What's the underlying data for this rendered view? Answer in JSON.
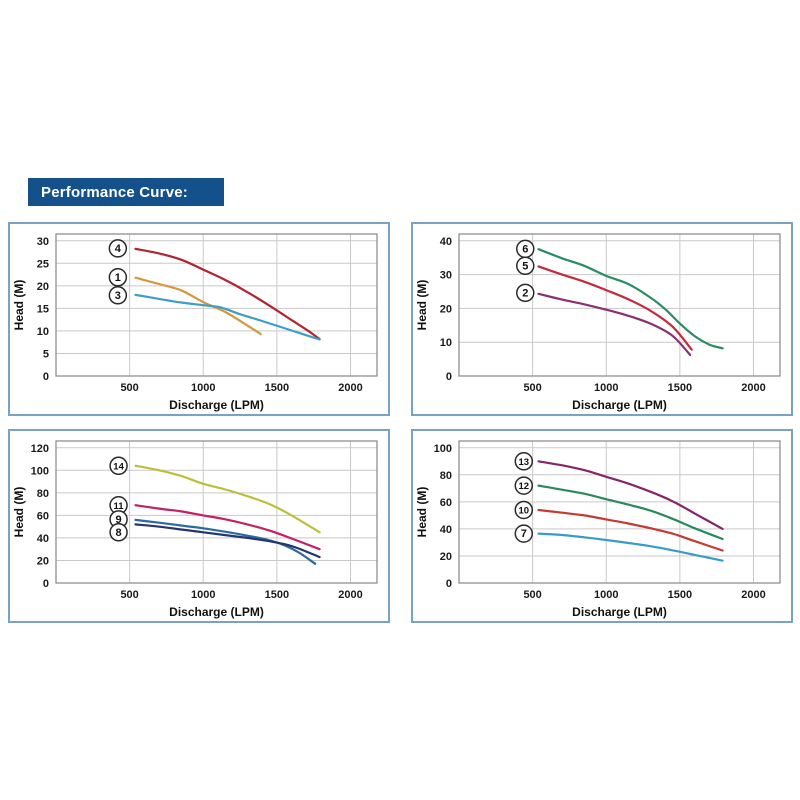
{
  "page": {
    "background": "#ffffff"
  },
  "header": {
    "title": "Performance Curve:",
    "bg": "#14518a",
    "fg": "#ffffff"
  },
  "panels": {
    "border_color": "#7aa2c2",
    "background": "#ffffff"
  },
  "chart_style": {
    "frame_color": "#909090",
    "grid_color": "#c9c9c9",
    "curve_width": 2.2,
    "circle_fill": "#ffffff",
    "circle_stroke": "#2a2a2a",
    "tick_color": "#1b1b1b"
  },
  "chart_data": [
    {
      "id": "top-left",
      "type": "line",
      "title": "",
      "xlabel": "Discharge (LPM)",
      "ylabel": "Head (M)",
      "xlim": [
        0,
        2180
      ],
      "ylim": [
        0,
        31.5
      ],
      "xticks": [
        500,
        1000,
        1500,
        2000
      ],
      "yticks": [
        0,
        5,
        10,
        15,
        20,
        25,
        30
      ],
      "grid": true,
      "series": [
        {
          "name": "4",
          "color": "#b22333",
          "label_at": [
            420,
            28.3
          ],
          "points": [
            [
              540,
              28.2
            ],
            [
              700,
              27.2
            ],
            [
              850,
              25.8
            ],
            [
              1000,
              23.6
            ],
            [
              1150,
              21.3
            ],
            [
              1300,
              18.6
            ],
            [
              1450,
              15.6
            ],
            [
              1600,
              12.4
            ],
            [
              1700,
              10.3
            ],
            [
              1790,
              8.2
            ]
          ]
        },
        {
          "name": "1",
          "color": "#d6973d",
          "label_at": [
            420,
            21.9
          ],
          "points": [
            [
              540,
              21.8
            ],
            [
              700,
              20.4
            ],
            [
              850,
              19.0
            ],
            [
              1000,
              16.4
            ],
            [
              1150,
              14.2
            ],
            [
              1280,
              11.6
            ],
            [
              1390,
              9.3
            ]
          ]
        },
        {
          "name": "3",
          "color": "#3d9ec6",
          "label_at": [
            420,
            17.9
          ],
          "points": [
            [
              540,
              18.0
            ],
            [
              700,
              17.1
            ],
            [
              850,
              16.3
            ],
            [
              1000,
              15.7
            ],
            [
              1120,
              15.2
            ],
            [
              1250,
              13.7
            ],
            [
              1400,
              12.2
            ],
            [
              1600,
              10.1
            ],
            [
              1790,
              8.1
            ]
          ]
        }
      ]
    },
    {
      "id": "top-right",
      "type": "line",
      "title": "",
      "xlabel": "Discharge (LPM)",
      "ylabel": "Head (M)",
      "xlim": [
        0,
        2180
      ],
      "ylim": [
        0,
        42
      ],
      "xticks": [
        500,
        1000,
        1500,
        2000
      ],
      "yticks": [
        0,
        10,
        20,
        30,
        40
      ],
      "grid": true,
      "series": [
        {
          "name": "6",
          "color": "#2a8c64",
          "label_at": [
            450,
            37.6
          ],
          "points": [
            [
              540,
              37.5
            ],
            [
              700,
              34.8
            ],
            [
              850,
              32.6
            ],
            [
              1000,
              29.6
            ],
            [
              1150,
              27.2
            ],
            [
              1300,
              23.2
            ],
            [
              1400,
              19.8
            ],
            [
              1500,
              15.5
            ],
            [
              1600,
              11.8
            ],
            [
              1700,
              9.3
            ],
            [
              1790,
              8.2
            ]
          ]
        },
        {
          "name": "5",
          "color": "#c22b3a",
          "label_at": [
            450,
            32.6
          ],
          "points": [
            [
              540,
              32.4
            ],
            [
              700,
              30.0
            ],
            [
              850,
              27.9
            ],
            [
              1000,
              25.4
            ],
            [
              1150,
              22.7
            ],
            [
              1300,
              19.3
            ],
            [
              1450,
              14.6
            ],
            [
              1580,
              7.8
            ]
          ]
        },
        {
          "name": "2",
          "color": "#8b2f72",
          "label_at": [
            450,
            24.6
          ],
          "points": [
            [
              540,
              24.3
            ],
            [
              700,
              22.6
            ],
            [
              850,
              21.2
            ],
            [
              1000,
              19.6
            ],
            [
              1150,
              17.8
            ],
            [
              1300,
              15.5
            ],
            [
              1450,
              11.9
            ],
            [
              1570,
              6.2
            ]
          ]
        }
      ]
    },
    {
      "id": "bottom-left",
      "type": "line",
      "title": "",
      "xlabel": "Discharge (LPM)",
      "ylabel": "Head (M)",
      "xlim": [
        0,
        2180
      ],
      "ylim": [
        0,
        126
      ],
      "xticks": [
        500,
        1000,
        1500,
        2000
      ],
      "yticks": [
        0,
        20,
        40,
        60,
        80,
        100,
        120
      ],
      "grid": true,
      "series": [
        {
          "name": "14",
          "color": "#bcbf3a",
          "label_at": [
            425,
            104
          ],
          "points": [
            [
              540,
              104
            ],
            [
              700,
              100
            ],
            [
              850,
              95
            ],
            [
              1000,
              88
            ],
            [
              1150,
              83
            ],
            [
              1300,
              77
            ],
            [
              1450,
              70
            ],
            [
              1600,
              60
            ],
            [
              1790,
              45
            ]
          ]
        },
        {
          "name": "11",
          "color": "#c42063",
          "label_at": [
            425,
            69
          ],
          "points": [
            [
              540,
              69
            ],
            [
              700,
              66
            ],
            [
              850,
              63.5
            ],
            [
              1000,
              60
            ],
            [
              1150,
              56.5
            ],
            [
              1300,
              52
            ],
            [
              1450,
              46.5
            ],
            [
              1600,
              39.5
            ],
            [
              1790,
              30
            ]
          ]
        },
        {
          "name": "9",
          "color": "#2c6b9e",
          "label_at": [
            425,
            56.5
          ],
          "points": [
            [
              540,
              56
            ],
            [
              700,
              53.5
            ],
            [
              850,
              51
            ],
            [
              1000,
              48.5
            ],
            [
              1150,
              45.5
            ],
            [
              1300,
              42
            ],
            [
              1430,
              38.5
            ],
            [
              1550,
              33.5
            ],
            [
              1650,
              27
            ],
            [
              1760,
              17
            ]
          ]
        },
        {
          "name": "8",
          "color": "#25356e",
          "label_at": [
            425,
            45
          ],
          "points": [
            [
              540,
              52
            ],
            [
              700,
              50
            ],
            [
              850,
              47.5
            ],
            [
              1000,
              45
            ],
            [
              1150,
              42.5
            ],
            [
              1300,
              40
            ],
            [
              1430,
              37.5
            ],
            [
              1550,
              34.5
            ],
            [
              1650,
              30.5
            ],
            [
              1790,
              23
            ]
          ]
        }
      ]
    },
    {
      "id": "bottom-right",
      "type": "line",
      "title": "",
      "xlabel": "Discharge (LPM)",
      "ylabel": "Head (M)",
      "xlim": [
        0,
        2180
      ],
      "ylim": [
        0,
        105
      ],
      "xticks": [
        500,
        1000,
        1500,
        2000
      ],
      "yticks": [
        0,
        20,
        40,
        60,
        80,
        100
      ],
      "grid": true,
      "series": [
        {
          "name": "13",
          "color": "#84276a",
          "label_at": [
            440,
            90
          ],
          "points": [
            [
              540,
              90
            ],
            [
              700,
              87
            ],
            [
              850,
              83.5
            ],
            [
              1000,
              78.5
            ],
            [
              1150,
              73.5
            ],
            [
              1300,
              67.5
            ],
            [
              1450,
              60.5
            ],
            [
              1600,
              51.5
            ],
            [
              1790,
              40
            ]
          ]
        },
        {
          "name": "12",
          "color": "#2a8a5e",
          "label_at": [
            440,
            72
          ],
          "points": [
            [
              540,
              72
            ],
            [
              700,
              69
            ],
            [
              850,
              66
            ],
            [
              1000,
              62
            ],
            [
              1150,
              58
            ],
            [
              1300,
              53.5
            ],
            [
              1450,
              47.5
            ],
            [
              1600,
              40.5
            ],
            [
              1790,
              32.5
            ]
          ]
        },
        {
          "name": "10",
          "color": "#c33b32",
          "label_at": [
            440,
            54
          ],
          "points": [
            [
              540,
              54
            ],
            [
              700,
              52
            ],
            [
              850,
              50
            ],
            [
              1000,
              47
            ],
            [
              1150,
              44
            ],
            [
              1300,
              40.5
            ],
            [
              1450,
              36.5
            ],
            [
              1600,
              31
            ],
            [
              1790,
              24
            ]
          ]
        },
        {
          "name": "7",
          "color": "#3a9cc6",
          "label_at": [
            440,
            36.5
          ],
          "points": [
            [
              540,
              36.5
            ],
            [
              700,
              35.5
            ],
            [
              850,
              33.8
            ],
            [
              1000,
              31.8
            ],
            [
              1150,
              29.6
            ],
            [
              1300,
              27.2
            ],
            [
              1450,
              24.2
            ],
            [
              1600,
              20.8
            ],
            [
              1790,
              16.5
            ]
          ]
        }
      ]
    }
  ]
}
